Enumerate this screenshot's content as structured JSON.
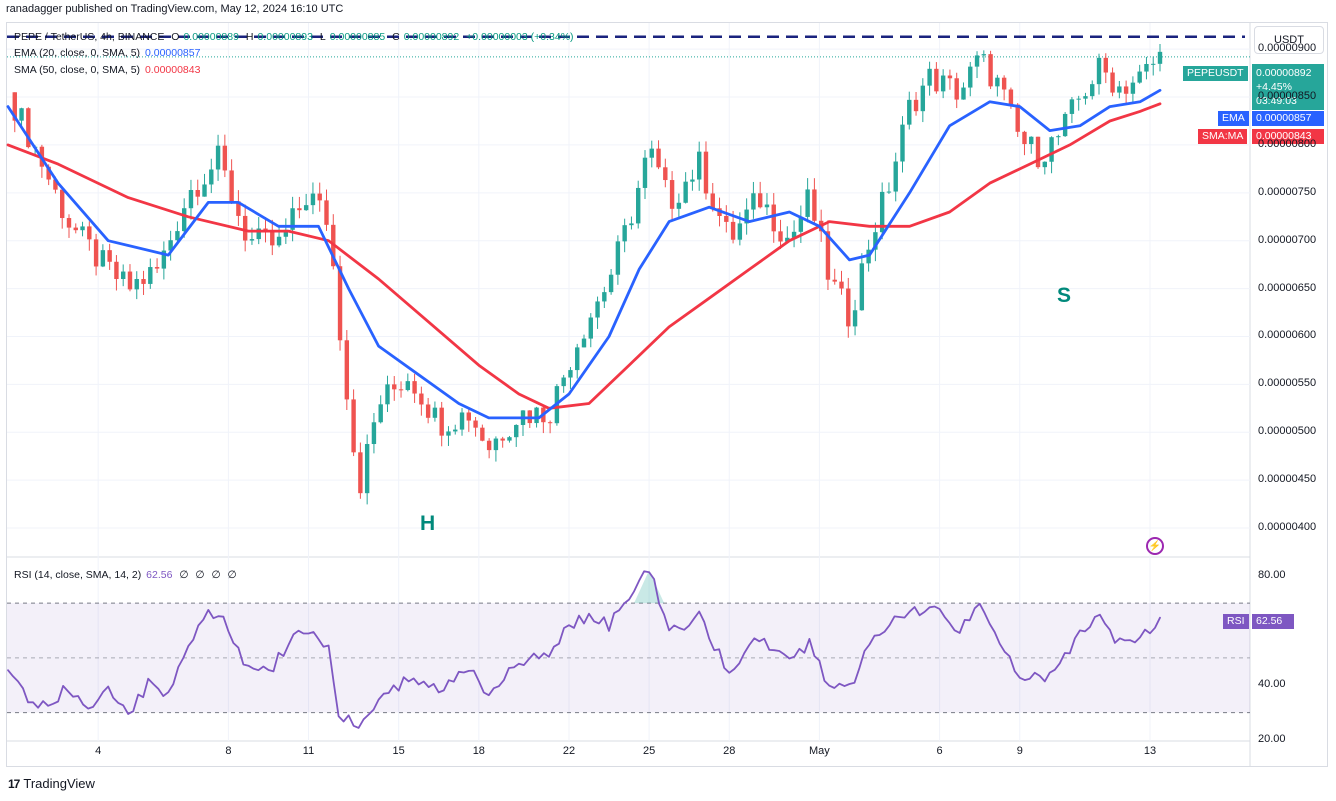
{
  "header": {
    "publisher": "ranadagger published on TradingView.com, May 12, 2024 16:10 UTC"
  },
  "symbol": {
    "title": "PEPE / TetherUS, 4h, BINANCE",
    "ohlc": {
      "o_key": "O",
      "o": "0.00000889",
      "h_key": "H",
      "h": "0.00000893",
      "l_key": "L",
      "l": "0.00000885",
      "c_key": "C",
      "c": "0.00000892",
      "change": "+0.00000003 (+0.34%)"
    }
  },
  "indicators": {
    "ema_label": "EMA (20, close, 0, SMA, 5)",
    "ema_value": "0.00000857",
    "sma_label": "SMA (50, close, 0, SMA, 5)",
    "sma_value": "0.00000843",
    "rsi_label": "RSI (14, close, SMA, 14, 2)",
    "rsi_value": "62.56",
    "rsi_zeros": "∅ ∅ ∅ ∅"
  },
  "currency": "USDT",
  "price_labels": {
    "ticker": "PEPEUSDT",
    "last": "0.00000892",
    "pct": "+4.45%",
    "countdown": "03:49:03",
    "ema_tag": "EMA",
    "ema": "0.00000857",
    "sma_tag": "SMA:MA",
    "sma": "0.00000843",
    "rsi_tag": "RSI",
    "rsi": "62.56"
  },
  "annotations": {
    "head": "H",
    "shoulder": "S"
  },
  "footer": {
    "brand": "TradingView",
    "logo": "17"
  },
  "colors": {
    "up": "#26a69a",
    "down": "#ef5350",
    "ema": "#2962ff",
    "sma": "#f23645",
    "rsi": "#7e57c2",
    "resistance": "#1a237e"
  },
  "chart_data": {
    "type": "candlestick",
    "title": "PEPE / TetherUS, 4h, BINANCE",
    "y_ticks": [
      "0.00000900",
      "0.00000850",
      "0.00000800",
      "0.00000750",
      "0.00000700",
      "0.00000650",
      "0.00000600",
      "0.00000550",
      "0.00000500",
      "0.00000450",
      "0.00000400"
    ],
    "x_ticks": [
      "4",
      "8",
      "11",
      "15",
      "18",
      "22",
      "25",
      "28",
      "May",
      "6",
      "9",
      "13"
    ],
    "ylim": [
      3.75e-06,
      9.2e-06
    ],
    "resistance_level": 9.13e-06,
    "close_path": [
      {
        "x": 0,
        "y": 8.55e-06
      },
      {
        "x": 3,
        "y": 7.9e-06
      },
      {
        "x": 6,
        "y": 7.2e-06
      },
      {
        "x": 9,
        "y": 6.8e-06
      },
      {
        "x": 12,
        "y": 6.5e-06
      },
      {
        "x": 15,
        "y": 6.7e-06
      },
      {
        "x": 18,
        "y": 7.5e-06
      },
      {
        "x": 21,
        "y": 7.85e-06
      },
      {
        "x": 24,
        "y": 7e-06
      },
      {
        "x": 27,
        "y": 6.95e-06
      },
      {
        "x": 30,
        "y": 7.5e-06
      },
      {
        "x": 32,
        "y": 7.2e-06
      },
      {
        "x": 33,
        "y": 6.2e-06
      },
      {
        "x": 35,
        "y": 4.4e-06
      },
      {
        "x": 37,
        "y": 5.3e-06
      },
      {
        "x": 40,
        "y": 5.6e-06
      },
      {
        "x": 43,
        "y": 5.1e-06
      },
      {
        "x": 46,
        "y": 5.2e-06
      },
      {
        "x": 48,
        "y": 4.85e-06
      },
      {
        "x": 51,
        "y": 5.2e-06
      },
      {
        "x": 54,
        "y": 5.2e-06
      },
      {
        "x": 57,
        "y": 6e-06
      },
      {
        "x": 60,
        "y": 6.6e-06
      },
      {
        "x": 62,
        "y": 7.2e-06
      },
      {
        "x": 64,
        "y": 7.95e-06
      },
      {
        "x": 66,
        "y": 7.4e-06
      },
      {
        "x": 69,
        "y": 7.8e-06
      },
      {
        "x": 72,
        "y": 7e-06
      },
      {
        "x": 75,
        "y": 7.45e-06
      },
      {
        "x": 78,
        "y": 7e-06
      },
      {
        "x": 80,
        "y": 7.45e-06
      },
      {
        "x": 82,
        "y": 6.6e-06
      },
      {
        "x": 84,
        "y": 6.2e-06
      },
      {
        "x": 86,
        "y": 7e-06
      },
      {
        "x": 88,
        "y": 7.6e-06
      },
      {
        "x": 90,
        "y": 8.4e-06
      },
      {
        "x": 92,
        "y": 8.7e-06
      },
      {
        "x": 95,
        "y": 8.55e-06
      },
      {
        "x": 97,
        "y": 8.9e-06
      },
      {
        "x": 99,
        "y": 8.6e-06
      },
      {
        "x": 101,
        "y": 8.05e-06
      },
      {
        "x": 103,
        "y": 7.9e-06
      },
      {
        "x": 105,
        "y": 8.1e-06
      },
      {
        "x": 107,
        "y": 8.5e-06
      },
      {
        "x": 109,
        "y": 8.8e-06
      },
      {
        "x": 111,
        "y": 8.6e-06
      },
      {
        "x": 113,
        "y": 8.7e-06
      },
      {
        "x": 115,
        "y": 8.92e-06
      }
    ],
    "ema20": [
      {
        "x": 0,
        "y": 8.4e-06
      },
      {
        "x": 5,
        "y": 7.6e-06
      },
      {
        "x": 10,
        "y": 7e-06
      },
      {
        "x": 16,
        "y": 6.85e-06
      },
      {
        "x": 20,
        "y": 7.4e-06
      },
      {
        "x": 23,
        "y": 7.4e-06
      },
      {
        "x": 27,
        "y": 7.15e-06
      },
      {
        "x": 31,
        "y": 7.15e-06
      },
      {
        "x": 34,
        "y": 6.5e-06
      },
      {
        "x": 37,
        "y": 5.9e-06
      },
      {
        "x": 41,
        "y": 5.6e-06
      },
      {
        "x": 45,
        "y": 5.3e-06
      },
      {
        "x": 48,
        "y": 5.15e-06
      },
      {
        "x": 53,
        "y": 5.15e-06
      },
      {
        "x": 56,
        "y": 5.4e-06
      },
      {
        "x": 60,
        "y": 6e-06
      },
      {
        "x": 63,
        "y": 6.7e-06
      },
      {
        "x": 66,
        "y": 7.2e-06
      },
      {
        "x": 70,
        "y": 7.35e-06
      },
      {
        "x": 74,
        "y": 7.2e-06
      },
      {
        "x": 78,
        "y": 7.3e-06
      },
      {
        "x": 81,
        "y": 7.15e-06
      },
      {
        "x": 84,
        "y": 6.8e-06
      },
      {
        "x": 86,
        "y": 6.85e-06
      },
      {
        "x": 90,
        "y": 7.5e-06
      },
      {
        "x": 94,
        "y": 8.2e-06
      },
      {
        "x": 98,
        "y": 8.45e-06
      },
      {
        "x": 101,
        "y": 8.4e-06
      },
      {
        "x": 104,
        "y": 8.15e-06
      },
      {
        "x": 107,
        "y": 8.2e-06
      },
      {
        "x": 110,
        "y": 8.4e-06
      },
      {
        "x": 113,
        "y": 8.45e-06
      },
      {
        "x": 115,
        "y": 8.57e-06
      }
    ],
    "sma50": [
      {
        "x": 0,
        "y": 8e-06
      },
      {
        "x": 5,
        "y": 7.8e-06
      },
      {
        "x": 12,
        "y": 7.45e-06
      },
      {
        "x": 18,
        "y": 7.25e-06
      },
      {
        "x": 24,
        "y": 7.1e-06
      },
      {
        "x": 28,
        "y": 7.1e-06
      },
      {
        "x": 32,
        "y": 7e-06
      },
      {
        "x": 37,
        "y": 6.6e-06
      },
      {
        "x": 42,
        "y": 6.15e-06
      },
      {
        "x": 47,
        "y": 5.7e-06
      },
      {
        "x": 51,
        "y": 5.4e-06
      },
      {
        "x": 54,
        "y": 5.25e-06
      },
      {
        "x": 58,
        "y": 5.3e-06
      },
      {
        "x": 62,
        "y": 5.7e-06
      },
      {
        "x": 66,
        "y": 6.1e-06
      },
      {
        "x": 70,
        "y": 6.4e-06
      },
      {
        "x": 74,
        "y": 6.7e-06
      },
      {
        "x": 78,
        "y": 7e-06
      },
      {
        "x": 82,
        "y": 7.2e-06
      },
      {
        "x": 86,
        "y": 7.15e-06
      },
      {
        "x": 90,
        "y": 7.15e-06
      },
      {
        "x": 94,
        "y": 7.3e-06
      },
      {
        "x": 98,
        "y": 7.6e-06
      },
      {
        "x": 102,
        "y": 7.8e-06
      },
      {
        "x": 106,
        "y": 8e-06
      },
      {
        "x": 110,
        "y": 8.25e-06
      },
      {
        "x": 113,
        "y": 8.35e-06
      },
      {
        "x": 115,
        "y": 8.43e-06
      }
    ],
    "rsi": {
      "ylim": [
        20,
        85
      ],
      "ticks": [
        "80.00",
        "40.00",
        "20.00"
      ],
      "upper_band": 70,
      "lower_band": 30,
      "middle": 50,
      "values": [
        {
          "x": 0,
          "y": 48
        },
        {
          "x": 2,
          "y": 36
        },
        {
          "x": 4,
          "y": 32
        },
        {
          "x": 6,
          "y": 40
        },
        {
          "x": 8,
          "y": 33
        },
        {
          "x": 10,
          "y": 38
        },
        {
          "x": 12,
          "y": 29
        },
        {
          "x": 14,
          "y": 40
        },
        {
          "x": 16,
          "y": 38
        },
        {
          "x": 18,
          "y": 55
        },
        {
          "x": 20,
          "y": 67
        },
        {
          "x": 22,
          "y": 62
        },
        {
          "x": 24,
          "y": 45
        },
        {
          "x": 26,
          "y": 45
        },
        {
          "x": 28,
          "y": 55
        },
        {
          "x": 30,
          "y": 60
        },
        {
          "x": 32,
          "y": 55
        },
        {
          "x": 33,
          "y": 30
        },
        {
          "x": 35,
          "y": 26
        },
        {
          "x": 37,
          "y": 35
        },
        {
          "x": 40,
          "y": 42
        },
        {
          "x": 43,
          "y": 38
        },
        {
          "x": 46,
          "y": 45
        },
        {
          "x": 48,
          "y": 38
        },
        {
          "x": 51,
          "y": 48
        },
        {
          "x": 54,
          "y": 52
        },
        {
          "x": 57,
          "y": 65
        },
        {
          "x": 60,
          "y": 62
        },
        {
          "x": 62,
          "y": 72
        },
        {
          "x": 64,
          "y": 82
        },
        {
          "x": 66,
          "y": 60
        },
        {
          "x": 69,
          "y": 65
        },
        {
          "x": 72,
          "y": 45
        },
        {
          "x": 75,
          "y": 58
        },
        {
          "x": 78,
          "y": 48
        },
        {
          "x": 80,
          "y": 55
        },
        {
          "x": 82,
          "y": 40
        },
        {
          "x": 84,
          "y": 38
        },
        {
          "x": 86,
          "y": 55
        },
        {
          "x": 88,
          "y": 62
        },
        {
          "x": 90,
          "y": 65
        },
        {
          "x": 92,
          "y": 70
        },
        {
          "x": 95,
          "y": 60
        },
        {
          "x": 97,
          "y": 68
        },
        {
          "x": 99,
          "y": 55
        },
        {
          "x": 101,
          "y": 45
        },
        {
          "x": 103,
          "y": 42
        },
        {
          "x": 105,
          "y": 48
        },
        {
          "x": 107,
          "y": 60
        },
        {
          "x": 109,
          "y": 65
        },
        {
          "x": 111,
          "y": 55
        },
        {
          "x": 113,
          "y": 58
        },
        {
          "x": 115,
          "y": 62.56
        }
      ]
    }
  }
}
